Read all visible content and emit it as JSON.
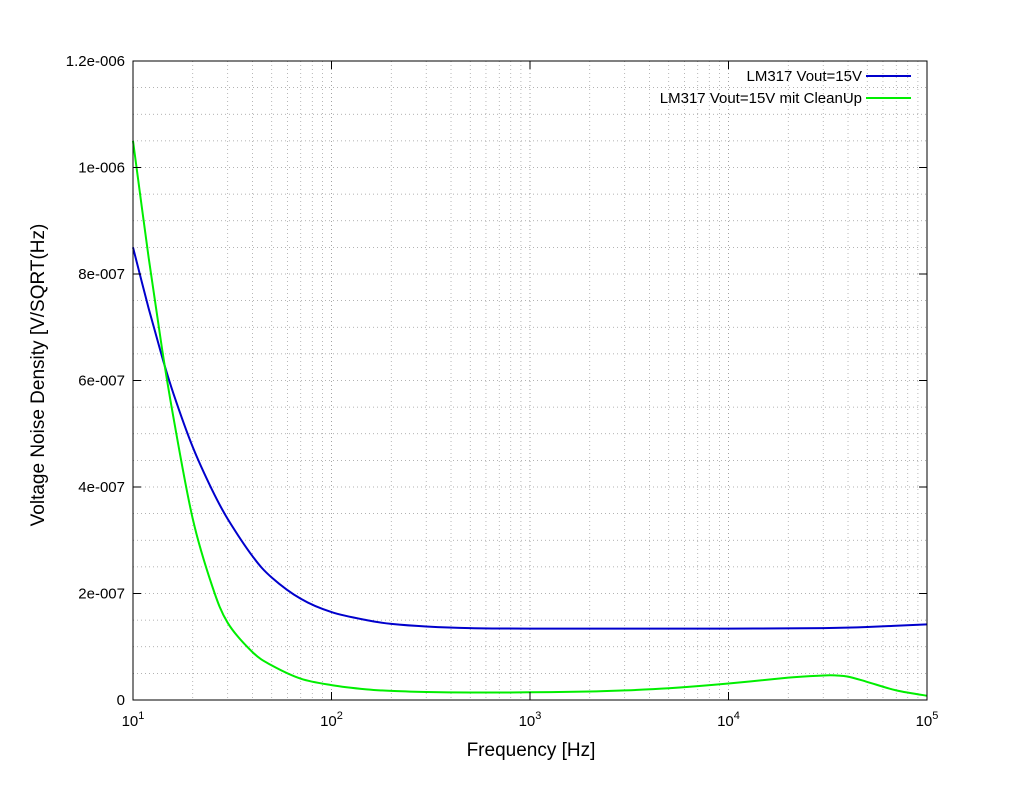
{
  "chart_data": {
    "type": "line",
    "title": "",
    "xlabel": "Frequency [Hz]",
    "ylabel": "Voltage Noise Density [V/SQRT(Hz)",
    "x_scale": "log",
    "xlim": [
      10,
      100000
    ],
    "ylim": [
      0,
      1.2e-06
    ],
    "grid": true,
    "legend_position": "top-right",
    "x_ticks": [
      {
        "value": 10,
        "base": "10",
        "exp": "1"
      },
      {
        "value": 100,
        "base": "10",
        "exp": "2"
      },
      {
        "value": 1000,
        "base": "10",
        "exp": "3"
      },
      {
        "value": 10000,
        "base": "10",
        "exp": "4"
      },
      {
        "value": 100000,
        "base": "10",
        "exp": "5"
      }
    ],
    "y_ticks": [
      {
        "value": 0,
        "label": "0"
      },
      {
        "value": 2e-07,
        "label": "2e-007"
      },
      {
        "value": 4e-07,
        "label": "4e-007"
      },
      {
        "value": 6e-07,
        "label": "6e-007"
      },
      {
        "value": 8e-07,
        "label": "8e-007"
      },
      {
        "value": 1e-06,
        "label": "1e-006"
      },
      {
        "value": 1.2e-06,
        "label": "1.2e-006"
      }
    ],
    "series": [
      {
        "name": "LM317 Vout=15V",
        "color": "#0000cc",
        "points": [
          [
            10,
            8.5e-07
          ],
          [
            12,
            7.35e-07
          ],
          [
            14,
            6.45e-07
          ],
          [
            16,
            5.75e-07
          ],
          [
            20,
            4.75e-07
          ],
          [
            25,
            3.95e-07
          ],
          [
            30,
            3.4e-07
          ],
          [
            40,
            2.7e-07
          ],
          [
            50,
            2.3e-07
          ],
          [
            70,
            1.9e-07
          ],
          [
            100,
            1.65e-07
          ],
          [
            150,
            1.5e-07
          ],
          [
            200,
            1.43e-07
          ],
          [
            300,
            1.38e-07
          ],
          [
            500,
            1.35e-07
          ],
          [
            1000,
            1.34e-07
          ],
          [
            3000,
            1.34e-07
          ],
          [
            10000,
            1.34e-07
          ],
          [
            30000,
            1.35e-07
          ],
          [
            50000,
            1.37e-07
          ],
          [
            100000,
            1.42e-07
          ]
        ]
      },
      {
        "name": "LM317 Vout=15V mit CleanUp",
        "color": "#00ee00",
        "points": [
          [
            10,
            1.05e-06
          ],
          [
            12,
            8.3e-07
          ],
          [
            14,
            6.6e-07
          ],
          [
            16,
            5.3e-07
          ],
          [
            20,
            3.4e-07
          ],
          [
            25,
            2.15e-07
          ],
          [
            30,
            1.45e-07
          ],
          [
            40,
            9e-08
          ],
          [
            50,
            6.5e-08
          ],
          [
            70,
            4e-08
          ],
          [
            100,
            2.8e-08
          ],
          [
            150,
            2e-08
          ],
          [
            200,
            1.7e-08
          ],
          [
            300,
            1.5e-08
          ],
          [
            500,
            1.4e-08
          ],
          [
            1000,
            1.45e-08
          ],
          [
            2000,
            1.6e-08
          ],
          [
            3000,
            1.8e-08
          ],
          [
            5000,
            2.2e-08
          ],
          [
            10000,
            3.1e-08
          ],
          [
            20000,
            4.2e-08
          ],
          [
            30000,
            4.6e-08
          ],
          [
            35000,
            4.6e-08
          ],
          [
            40000,
            4.4e-08
          ],
          [
            50000,
            3.4e-08
          ],
          [
            70000,
            1.8e-08
          ],
          [
            100000,
            8e-09
          ]
        ]
      }
    ]
  }
}
